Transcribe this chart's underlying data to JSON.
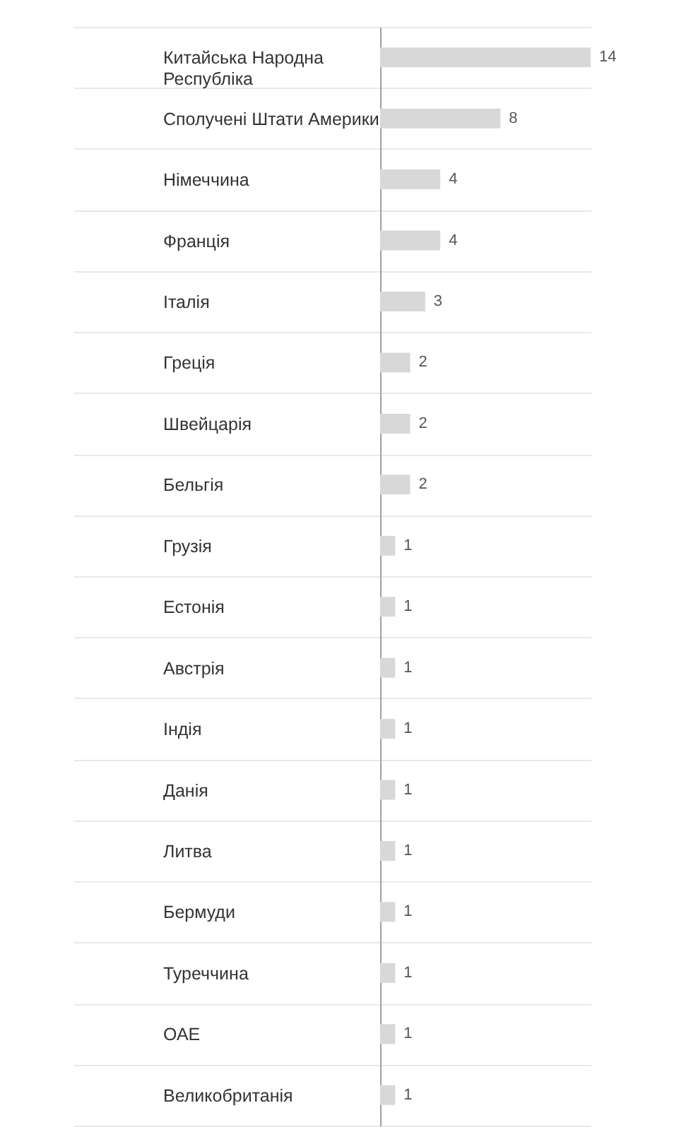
{
  "chart_data": {
    "type": "bar",
    "orientation": "horizontal",
    "categories": [
      "Китайська Народна Республіка",
      "Сполучені Штати Америки",
      "Німеччина",
      "Франція",
      "Італія",
      "Греція",
      "Швейцарія",
      "Бельгія",
      "Грузія",
      "Естонія",
      "Австрія",
      "Індія",
      "Данія",
      "Литва",
      "Бермуди",
      "Туреччина",
      "ОАЕ",
      "Великобританія"
    ],
    "values": [
      14,
      8,
      4,
      4,
      3,
      2,
      2,
      2,
      1,
      1,
      1,
      1,
      1,
      1,
      1,
      1,
      1,
      1
    ],
    "color": "#d9d8d9",
    "data_labels": true,
    "grid": "y"
  }
}
